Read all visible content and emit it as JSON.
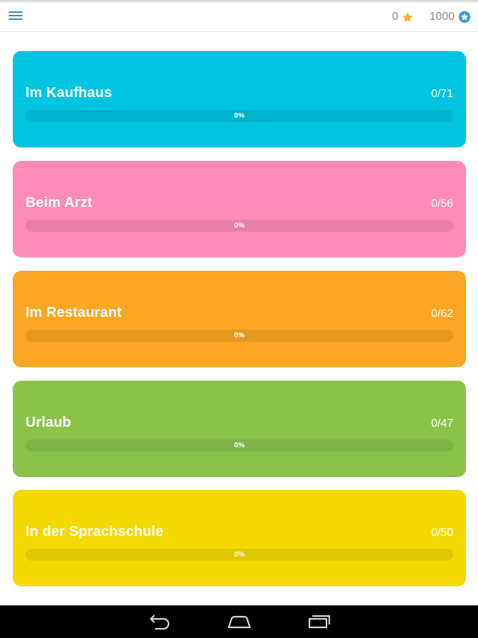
{
  "header": {
    "stars": "0",
    "coins": "1000",
    "icons": {
      "menu": "menu-icon",
      "star": "star-icon",
      "coin": "coin-icon"
    },
    "colors": {
      "menu": "#2a8fd4",
      "star": "#f7b02a",
      "coin": "#3a9be0"
    }
  },
  "lessons": [
    {
      "title": "Im Kaufhaus",
      "count": "0/71",
      "progress": 0,
      "progress_label": "0%",
      "color": "#00c4e0"
    },
    {
      "title": "Beim Arzt",
      "count": "0/56",
      "progress": 0,
      "progress_label": "0%",
      "color": "#fd8bb7"
    },
    {
      "title": "Im Restaurant",
      "count": "0/62",
      "progress": 0,
      "progress_label": "0%",
      "color": "#faa523"
    },
    {
      "title": "Urlaub",
      "count": "0/47",
      "progress": 0,
      "progress_label": "0%",
      "color": "#8bc34a"
    },
    {
      "title": "In der Sprachschule",
      "count": "0/50",
      "progress": 0,
      "progress_label": "0%",
      "color": "#f4d900"
    }
  ],
  "navbar": {
    "icons": [
      "back-icon",
      "home-icon",
      "recent-apps-icon"
    ]
  }
}
